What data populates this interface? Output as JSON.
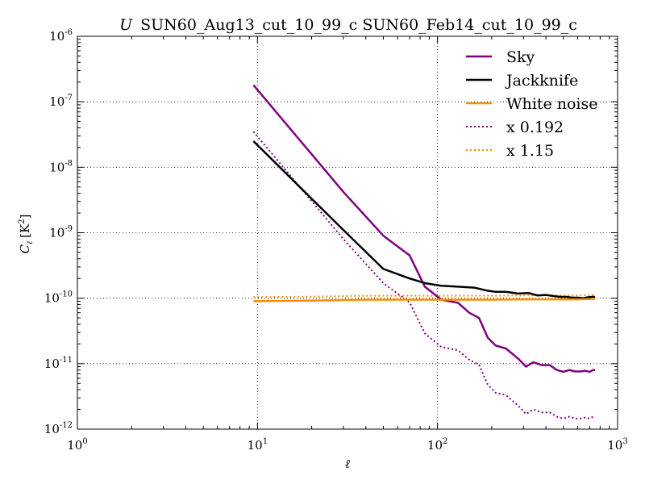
{
  "chart_data": {
    "type": "line",
    "title_prefix": "U",
    "title": "SUN60_Aug13_cut_10_99_c SUN60_Feb14_cut_10_99_c",
    "xlabel": "ℓ",
    "ylabel": "C",
    "ylabel_sub": "ℓ",
    "ylabel_unit": "[K",
    "ylabel_unit_sup": "2",
    "ylabel_unit_end": "]",
    "xscale": "log",
    "yscale": "log",
    "xlim": [
      1,
      1000
    ],
    "ylim": [
      1e-12,
      1e-06
    ],
    "grid": true,
    "legend_position": "upper-right",
    "x_ticks": [
      {
        "base": "10",
        "exp": "0",
        "value": 1
      },
      {
        "base": "10",
        "exp": "1",
        "value": 10
      },
      {
        "base": "10",
        "exp": "2",
        "value": 100
      },
      {
        "base": "10",
        "exp": "3",
        "value": 1000
      }
    ],
    "y_ticks": [
      {
        "base": "10",
        "exp": "-12",
        "value": 1e-12
      },
      {
        "base": "10",
        "exp": "-11",
        "value": 1e-11
      },
      {
        "base": "10",
        "exp": "-10",
        "value": 1e-10
      },
      {
        "base": "10",
        "exp": "-9",
        "value": 1e-09
      },
      {
        "base": "10",
        "exp": "-8",
        "value": 1e-08
      },
      {
        "base": "10",
        "exp": "-7",
        "value": 1e-07
      },
      {
        "base": "10",
        "exp": "-6",
        "value": 1e-06
      }
    ],
    "series": [
      {
        "name": "Sky",
        "color": "#800080",
        "style": "solid",
        "x": [
          9.5,
          30,
          50,
          70,
          85,
          105,
          130,
          150,
          170,
          190,
          210,
          240,
          280,
          310,
          340,
          380,
          420,
          460,
          500,
          540,
          580,
          620,
          660,
          700,
          730,
          750
        ],
        "y": [
          1.8e-07,
          4.2e-09,
          9e-10,
          4.5e-10,
          1.5e-10,
          9.5e-11,
          8.5e-11,
          6e-11,
          5e-11,
          2.5e-11,
          1.9e-11,
          1.7e-11,
          1.2e-11,
          9e-12,
          1.05e-11,
          9.5e-12,
          9.5e-12,
          8e-12,
          7.5e-12,
          8e-12,
          7.6e-12,
          7.6e-12,
          7.8e-12,
          7.5e-12,
          8e-12,
          8e-12
        ]
      },
      {
        "name": "Jackknife",
        "color": "#000000",
        "style": "solid",
        "x": [
          9.5,
          30,
          50,
          70,
          85,
          105,
          130,
          160,
          190,
          210,
          240,
          280,
          320,
          360,
          400,
          440,
          480,
          520,
          560,
          600,
          640,
          680,
          720,
          750
        ],
        "y": [
          2.5e-08,
          1.1e-09,
          2.8e-10,
          2e-10,
          1.7e-10,
          1.55e-10,
          1.5e-10,
          1.45e-10,
          1.3e-10,
          1.25e-10,
          1.25e-10,
          1.18e-10,
          1.2e-10,
          1.1e-10,
          1.12e-10,
          1.08e-10,
          1.05e-10,
          1.05e-10,
          1.02e-10,
          1.02e-10,
          1e-10,
          1.03e-10,
          1.05e-10,
          1.05e-10
        ]
      },
      {
        "name": "White noise",
        "color": "#ff8c00",
        "style": "solid",
        "x": [
          9.5,
          20,
          40,
          70,
          100,
          150,
          200,
          300,
          400,
          500,
          600,
          700,
          750
        ],
        "y": [
          9e-11,
          9.2e-11,
          9.5e-11,
          9.5e-11,
          9.5e-11,
          9.5e-11,
          9.5e-11,
          9.6e-11,
          9.6e-11,
          9.6e-11,
          9.6e-11,
          9.7e-11,
          9.8e-11
        ]
      },
      {
        "name": "x 0.192",
        "color": "#800080",
        "style": "dotted",
        "x": [
          9.5,
          30,
          50,
          70,
          85,
          105,
          130,
          150,
          170,
          190,
          210,
          240,
          280,
          310,
          340,
          380,
          420,
          460,
          500,
          540,
          580,
          620,
          660,
          700,
          730,
          750
        ],
        "y": [
          3.5e-08,
          8e-10,
          1.7e-10,
          8.6e-11,
          2.9e-11,
          1.8e-11,
          1.6e-11,
          1.15e-11,
          9.6e-12,
          4.8e-12,
          3.6e-12,
          3.3e-12,
          2.3e-12,
          1.7e-12,
          2e-12,
          1.8e-12,
          1.8e-12,
          1.55e-12,
          1.45e-12,
          1.55e-12,
          1.45e-12,
          1.45e-12,
          1.5e-12,
          1.45e-12,
          1.55e-12,
          1.55e-12
        ]
      },
      {
        "name": "x 1.15",
        "color": "#ff8c00",
        "style": "dotted",
        "x": [
          9.5,
          20,
          40,
          70,
          100,
          150,
          200,
          300,
          400,
          500,
          600,
          700,
          750
        ],
        "y": [
          1.04e-10,
          1.06e-10,
          1.09e-10,
          1.09e-10,
          1.09e-10,
          1.09e-10,
          1.09e-10,
          1.1e-10,
          1.1e-10,
          1.1e-10,
          1.1e-10,
          1.12e-10,
          1.13e-10
        ]
      }
    ]
  }
}
